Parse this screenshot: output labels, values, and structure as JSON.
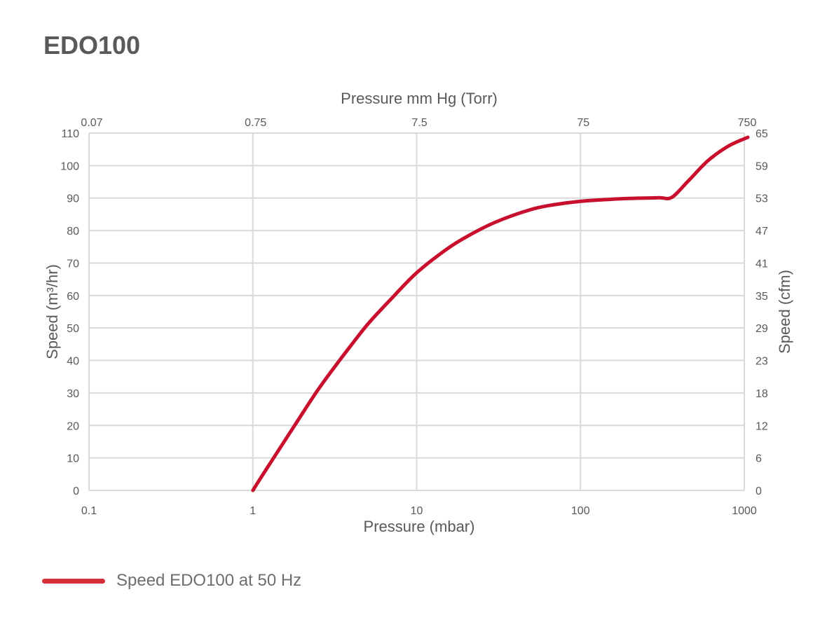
{
  "page": {
    "title": "EDO100"
  },
  "colors": {
    "series": "#c8102e",
    "legend_swatch": "#d6303a",
    "grid": "#d9d9d9",
    "text": "#595959"
  },
  "chart_data": {
    "type": "line",
    "x_scale": "log",
    "xlabel": "Pressure (mbar)",
    "xlim": [
      0.1,
      1000
    ],
    "x_ticks": [
      {
        "value": 0.1,
        "label": "0.1"
      },
      {
        "value": 1,
        "label": "1"
      },
      {
        "value": 10,
        "label": "10"
      },
      {
        "value": 100,
        "label": "100"
      },
      {
        "value": 1000,
        "label": "1000"
      }
    ],
    "x2label": "Pressure mm Hg (Torr)",
    "x2_ticks": [
      {
        "value": 0.1,
        "label": "0.07"
      },
      {
        "value": 1,
        "label": "0.75"
      },
      {
        "value": 10,
        "label": "7.5"
      },
      {
        "value": 100,
        "label": "75"
      },
      {
        "value": 1000,
        "label": "750"
      }
    ],
    "ylabel": "Speed (m³/hr)",
    "ylim": [
      0,
      110
    ],
    "y_ticks": [
      0,
      10,
      20,
      30,
      40,
      50,
      60,
      70,
      80,
      90,
      100,
      110
    ],
    "y2label": "Speed (cfm)",
    "y2_ticks": [
      {
        "value": 0,
        "label": "0"
      },
      {
        "value": 10,
        "label": "6"
      },
      {
        "value": 20,
        "label": "12"
      },
      {
        "value": 30,
        "label": "18"
      },
      {
        "value": 40,
        "label": "23"
      },
      {
        "value": 50,
        "label": "29"
      },
      {
        "value": 60,
        "label": "35"
      },
      {
        "value": 70,
        "label": "41"
      },
      {
        "value": 80,
        "label": "47"
      },
      {
        "value": 90,
        "label": "53"
      },
      {
        "value": 100,
        "label": "59"
      },
      {
        "value": 110,
        "label": "65"
      }
    ],
    "grid": true,
    "legend_position": "bottom-left",
    "series": [
      {
        "name": "Speed EDO100 at 50 Hz",
        "x": [
          1.0,
          1.3,
          1.8,
          2.5,
          3.5,
          5,
          7,
          10,
          15,
          20,
          30,
          50,
          70,
          100,
          150,
          200,
          300,
          360,
          450,
          600,
          800,
          1050
        ],
        "y": [
          0,
          9,
          20,
          31,
          41,
          51,
          59,
          67,
          74,
          78,
          82.5,
          86.5,
          88,
          89,
          89.6,
          89.9,
          90.1,
          90.2,
          95,
          101.5,
          106,
          108.7
        ]
      }
    ]
  }
}
